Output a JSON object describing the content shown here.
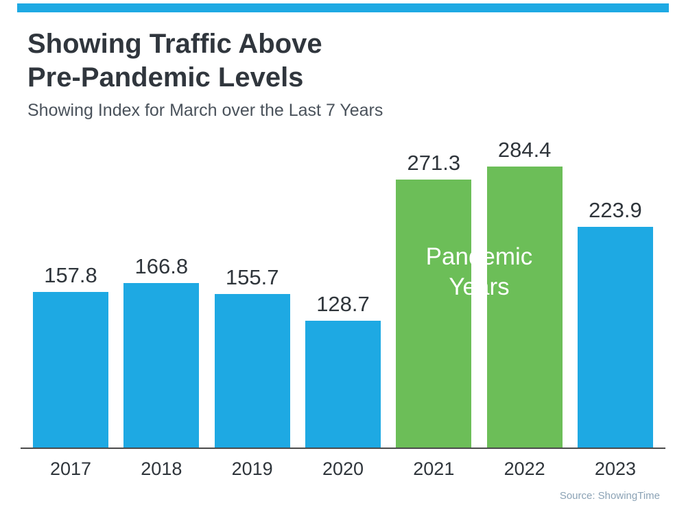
{
  "page": {
    "accent_color": "#1ea9e3",
    "title_line1": "Showing Traffic Above",
    "title_line2": "Pre-Pandemic Levels",
    "subtitle": "Showing Index for March over the Last 7 Years",
    "source": "Source: ShowingTime"
  },
  "chart_data": {
    "type": "bar",
    "title": "Showing Traffic Above Pre-Pandemic Levels",
    "subtitle": "Showing Index for March over the Last 7 Years",
    "categories": [
      "2017",
      "2018",
      "2019",
      "2020",
      "2021",
      "2022",
      "2023"
    ],
    "values": [
      157.8,
      166.8,
      155.7,
      128.7,
      271.3,
      284.4,
      223.9
    ],
    "bar_colors": [
      "#1ea9e3",
      "#1ea9e3",
      "#1ea9e3",
      "#1ea9e3",
      "#6cbe58",
      "#6cbe58",
      "#1ea9e3"
    ],
    "annotation": "Pandemic Years",
    "annotation_lines": [
      "Pandemic",
      "Years"
    ],
    "annotation_color": "#ffffff",
    "xlabel": "",
    "ylabel": "",
    "ylim": [
      0,
      300
    ],
    "grid": false,
    "legend": false,
    "source": "Source: ShowingTime"
  }
}
